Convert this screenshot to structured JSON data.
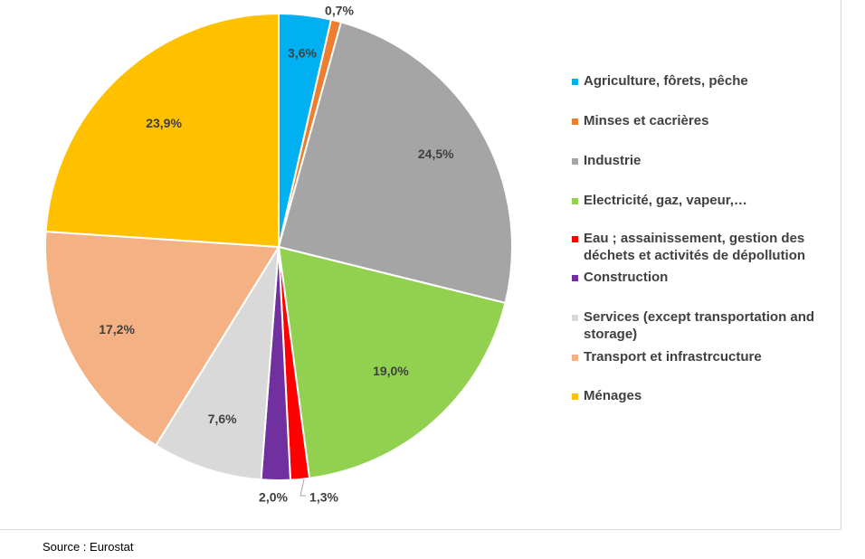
{
  "chart_data": {
    "type": "pie",
    "start_angle_deg": 0,
    "direction": "clockwise",
    "legend_position": "right",
    "slices": [
      {
        "label": "Agriculture, fôrets, pêche",
        "value": 3.6,
        "display": "3,6%",
        "color": "#00b0f0"
      },
      {
        "label": "Minses et cacrières",
        "value": 0.7,
        "display": "0,7%",
        "color": "#ed7d31"
      },
      {
        "label": "Industrie",
        "value": 24.5,
        "display": "24,5%",
        "color": "#a5a5a5"
      },
      {
        "label": "Electricité, gaz, vapeur,…",
        "value": 19.0,
        "display": "19,0%",
        "color": "#92d050"
      },
      {
        "label": "Eau ; assainissement, gestion des déchets et activités de dépollution",
        "value": 1.3,
        "display": "1,3%",
        "color": "#ff0000"
      },
      {
        "label": "Construction",
        "value": 2.0,
        "display": "2,0%",
        "color": "#7030a0"
      },
      {
        "label": "Services (except transportation and storage)",
        "value": 7.6,
        "display": "7,6%",
        "color": "#d9d9d9"
      },
      {
        "label": "Transport et infrastrcucture",
        "value": 17.2,
        "display": "17,2%",
        "color": "#f4b183"
      },
      {
        "label": "Ménages",
        "value": 23.9,
        "display": "23,9%",
        "color": "#ffc000"
      }
    ]
  },
  "source": "Source : Eurostat"
}
